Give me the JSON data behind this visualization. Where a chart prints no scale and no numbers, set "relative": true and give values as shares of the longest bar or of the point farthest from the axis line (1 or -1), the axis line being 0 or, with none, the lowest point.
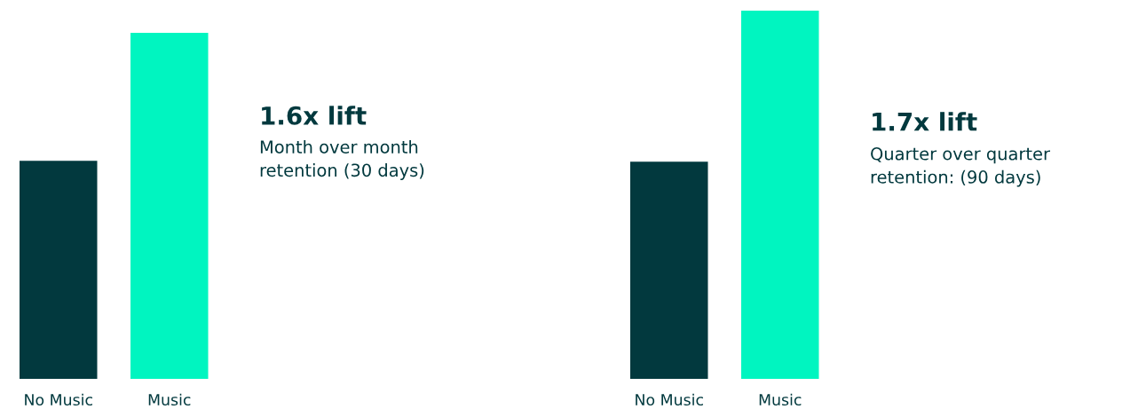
{
  "chart_data": [
    {
      "type": "bar",
      "relative": true,
      "annotations": [
        "1.6x lift",
        "Month over month\nretention (30 days)"
      ],
      "categories": [
        "No Music",
        "Music"
      ],
      "values": [
        0.63,
        1
      ],
      "colors": [
        "#02393e",
        "#00f5c0"
      ]
    },
    {
      "type": "bar",
      "relative": true,
      "annotations": [
        "1.7x lift",
        "Quarter over quarter\nretention: (90 days)"
      ],
      "categories": [
        "No Music",
        "Music"
      ],
      "values": [
        0.59,
        1
      ],
      "colors": [
        "#02393e",
        "#00f5c0"
      ]
    }
  ]
}
